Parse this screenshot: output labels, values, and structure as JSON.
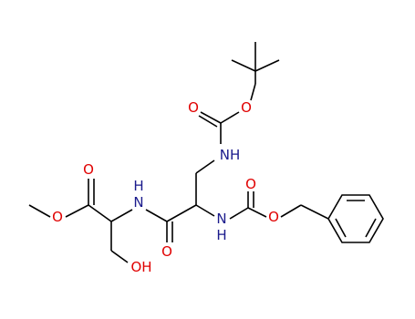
{
  "atoms": [
    {
      "label": "O"
    },
    {
      "label": "O"
    },
    {
      "label": "NH"
    },
    {
      "label": "N"
    },
    {
      "label": "H"
    },
    {
      "label": "O"
    },
    {
      "label": "O"
    },
    {
      "label": "H"
    },
    {
      "label": "N"
    },
    {
      "label": "O"
    },
    {
      "label": "O"
    },
    {
      "label": "O"
    },
    {
      "label": "OH"
    }
  ]
}
